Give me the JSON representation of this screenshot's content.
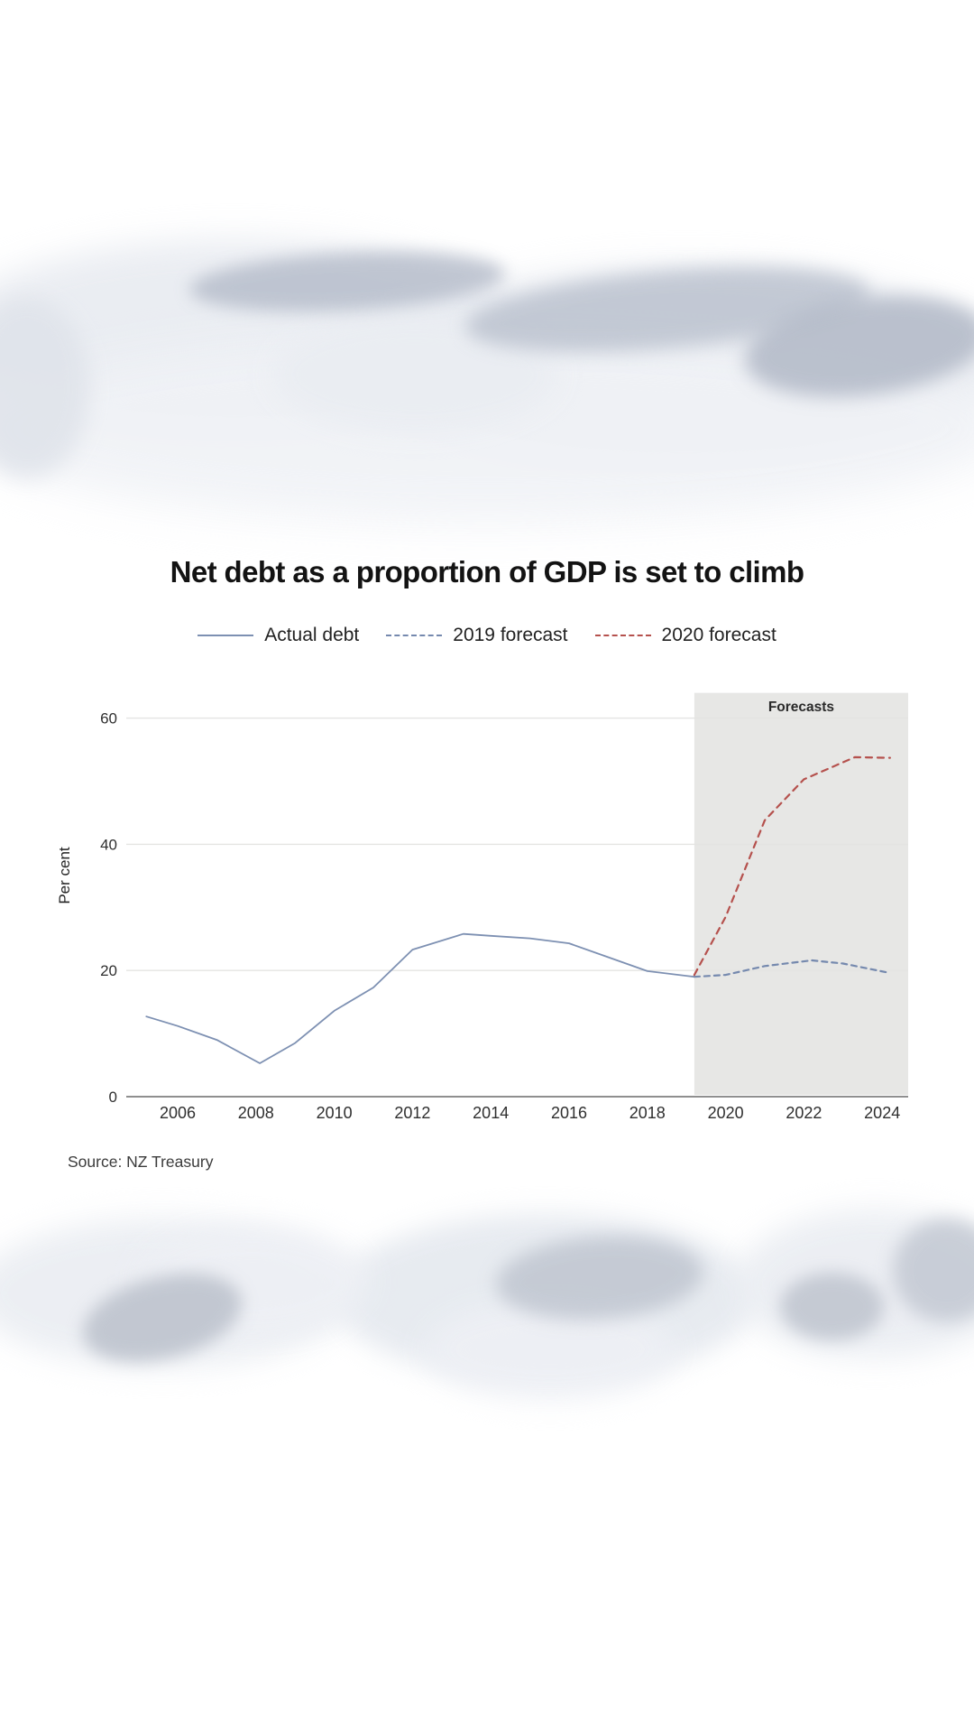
{
  "page": {
    "background_color": "#ffffff"
  },
  "header": {
    "title": "Net debt as a proportion of GDP is set to climb"
  },
  "source": {
    "text": "Source: NZ Treasury"
  },
  "chart_data": {
    "type": "line",
    "title": "Net debt as a proportion of GDP is set to climb",
    "xlabel": "",
    "ylabel": "Per cent",
    "ylim": [
      0,
      64
    ],
    "xlim": [
      2004.7,
      2024.7
    ],
    "y_ticks": [
      0,
      20,
      40,
      60
    ],
    "x_ticks": [
      2006,
      2008,
      2010,
      2012,
      2014,
      2016,
      2018,
      2020,
      2022,
      2024
    ],
    "grid": "horizontal-only",
    "legend_position": "top-center",
    "forecast_region": {
      "label": "Forecasts",
      "x_start": 2019.2,
      "x_end": 2024.7,
      "fill": "#e7e7e5"
    },
    "series": [
      {
        "name": "Actual debt",
        "color": "#7d90b2",
        "dash": "none",
        "points": [
          [
            2005.2,
            12.7
          ],
          [
            2006,
            11.2
          ],
          [
            2007,
            9.0
          ],
          [
            2008.1,
            5.3
          ],
          [
            2009,
            8.5
          ],
          [
            2010,
            13.6
          ],
          [
            2011,
            17.3
          ],
          [
            2012,
            23.3
          ],
          [
            2013.3,
            25.8
          ],
          [
            2014,
            25.5
          ],
          [
            2015,
            25.1
          ],
          [
            2016,
            24.3
          ],
          [
            2017,
            22.1
          ],
          [
            2018,
            19.9
          ],
          [
            2019.2,
            19.0
          ]
        ]
      },
      {
        "name": "2019 forecast",
        "color": "#7589ae",
        "dash": "6 5",
        "points": [
          [
            2019.2,
            19.0
          ],
          [
            2020,
            19.3
          ],
          [
            2021,
            20.7
          ],
          [
            2022.2,
            21.6
          ],
          [
            2023,
            21.1
          ],
          [
            2024.2,
            19.6
          ]
        ]
      },
      {
        "name": "2020 forecast",
        "color": "#b5514d",
        "dash": "7 6",
        "points": [
          [
            2019.2,
            19.3
          ],
          [
            2020,
            28.5
          ],
          [
            2021,
            43.8
          ],
          [
            2022,
            50.3
          ],
          [
            2023.3,
            53.8
          ],
          [
            2024.2,
            53.7
          ]
        ]
      }
    ]
  }
}
